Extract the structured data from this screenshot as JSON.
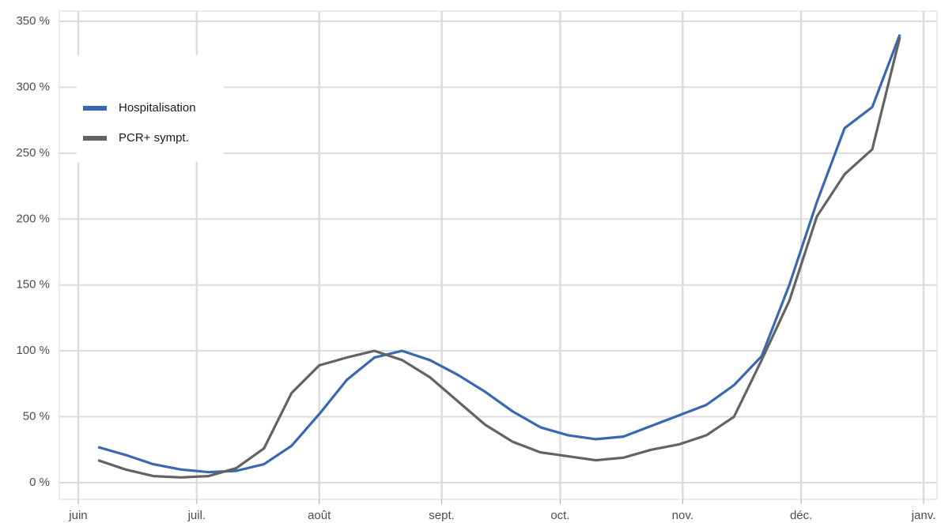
{
  "chart_data": {
    "type": "line",
    "x": [
      5,
      12,
      19,
      26,
      33,
      40,
      47,
      54,
      61,
      68,
      75,
      82,
      89,
      96,
      103,
      110,
      117,
      124,
      131,
      138,
      145,
      152,
      159,
      166,
      173,
      180,
      187,
      194,
      201,
      208
    ],
    "series": [
      {
        "name": "Hospitalisation",
        "color": "#3a68b0",
        "values": [
          27,
          21,
          14,
          10,
          8,
          9,
          14,
          28,
          52,
          78,
          95,
          100,
          93,
          82,
          69,
          54,
          42,
          36,
          33,
          35,
          43,
          51,
          59,
          74,
          96,
          150,
          213,
          269,
          285,
          340
        ]
      },
      {
        "name": "PCR+ sympt.",
        "color": "#636363",
        "values": [
          17,
          10,
          5,
          4,
          5,
          11,
          26,
          68,
          89,
          95,
          100,
          93,
          80,
          62,
          44,
          31,
          23,
          20,
          17,
          19,
          25,
          29,
          36,
          50,
          93,
          138,
          202,
          234,
          253,
          338
        ]
      }
    ],
    "xlim": [
      -4.8,
      217.4
    ],
    "xticks": [
      {
        "value": 0,
        "label": "juin"
      },
      {
        "value": 30,
        "label": "juil."
      },
      {
        "value": 61,
        "label": "août"
      },
      {
        "value": 92,
        "label": "sept."
      },
      {
        "value": 122,
        "label": "oct."
      },
      {
        "value": 153,
        "label": "nov."
      },
      {
        "value": 183,
        "label": "déc."
      },
      {
        "value": 214,
        "label": "janv."
      }
    ],
    "ylim": [
      -12.6,
      357.8
    ],
    "yticks": [
      {
        "value": 0,
        "label": "0 %"
      },
      {
        "value": 50,
        "label": "50 %"
      },
      {
        "value": 100,
        "label": "100 %"
      },
      {
        "value": 150,
        "label": "150 %"
      },
      {
        "value": 200,
        "label": "200 %"
      },
      {
        "value": 250,
        "label": "250 %"
      },
      {
        "value": 300,
        "label": "300 %"
      },
      {
        "value": 350,
        "label": "350 %"
      }
    ],
    "grid": true,
    "legend": "top-left"
  }
}
